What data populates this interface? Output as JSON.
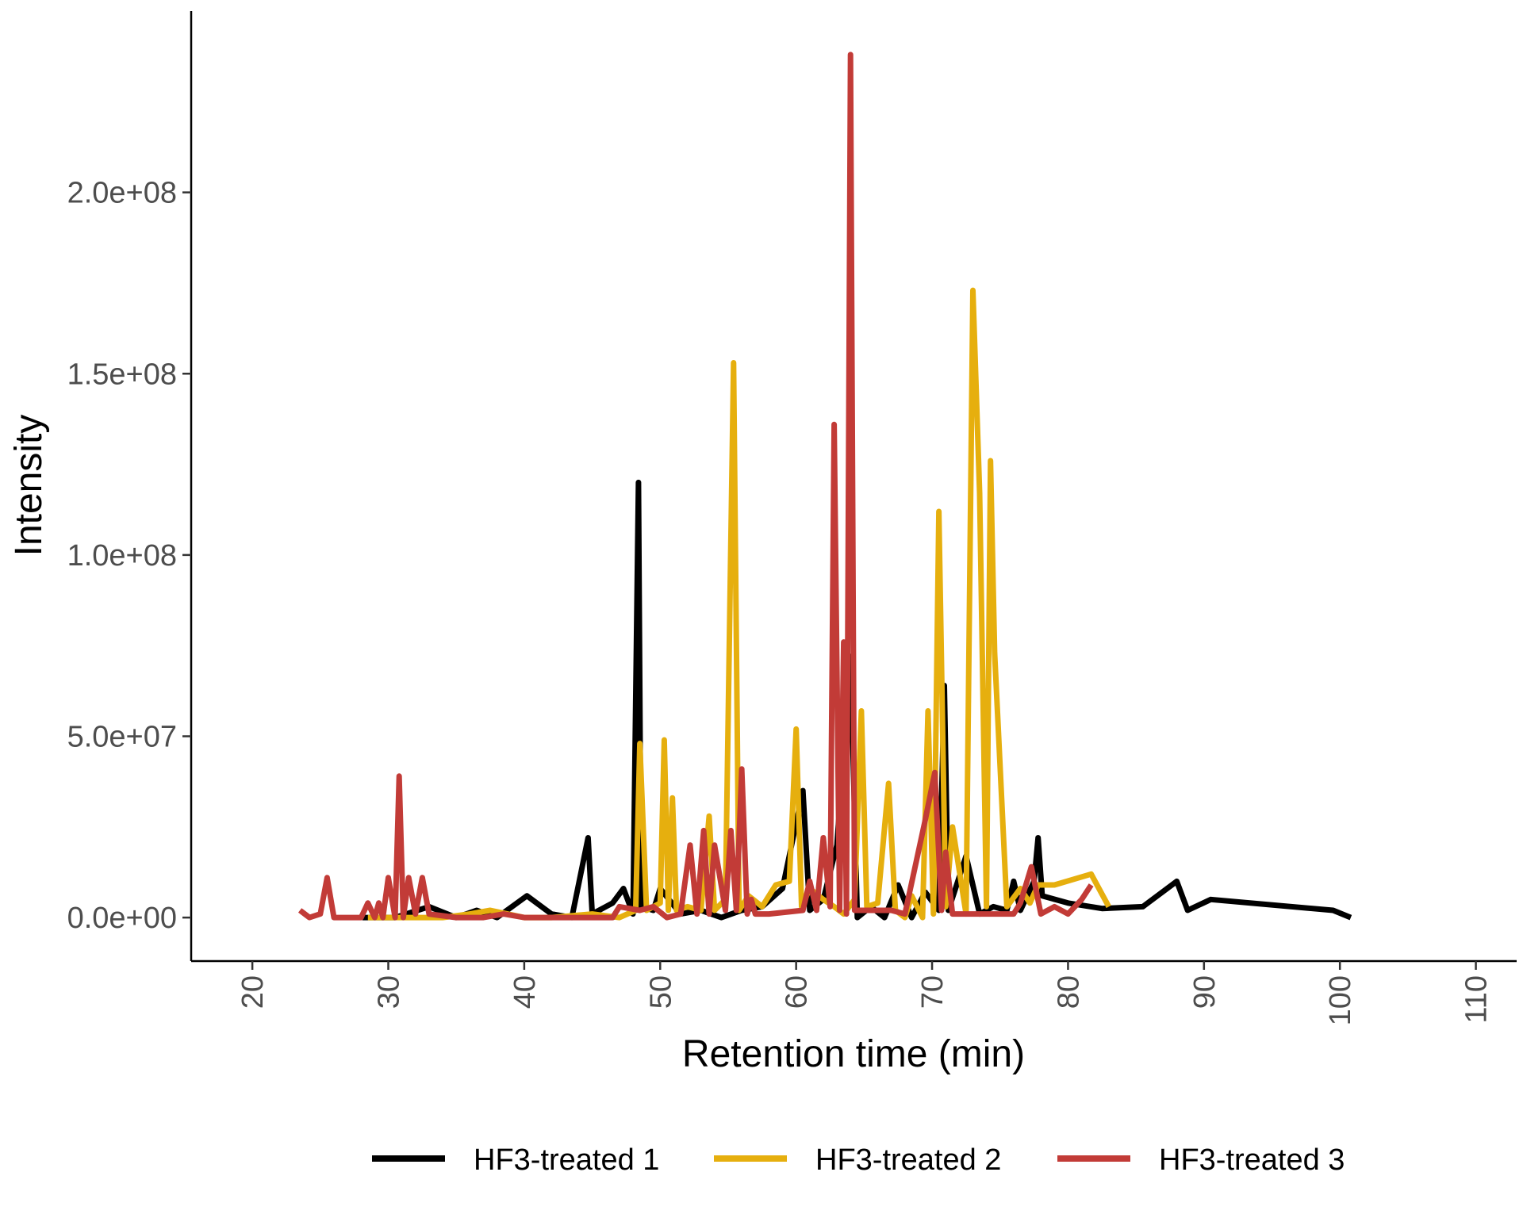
{
  "chart_data": {
    "type": "line",
    "title": "",
    "xlabel": "Retention time (min)",
    "ylabel": "Intensity",
    "xlim": [
      15.5,
      113
    ],
    "ylim": [
      -12000000,
      250000000
    ],
    "x_ticks": [
      20,
      30,
      40,
      50,
      60,
      70,
      80,
      90,
      100,
      110
    ],
    "x_tick_labels": [
      "20",
      "30",
      "40",
      "50",
      "60",
      "70",
      "80",
      "90",
      "100",
      "110"
    ],
    "y_ticks": [
      0,
      50000000,
      100000000,
      150000000,
      200000000
    ],
    "y_tick_labels": [
      "0.0e+00",
      "5.0e+07",
      "1.0e+08",
      "1.5e+08",
      "2.0e+08"
    ],
    "grid": false,
    "legend_position": "bottom",
    "series": [
      {
        "name": "HF3-treated 1",
        "color": "#000000",
        "x": [
          28.1,
          30.5,
          33.0,
          35.0,
          36.5,
          38.0,
          40.2,
          42.0,
          43.5,
          44.7,
          45.0,
          46.5,
          47.3,
          48.0,
          48.4,
          48.6,
          49.5,
          50.0,
          51.5,
          53.0,
          54.5,
          56.0,
          57.5,
          59.0,
          60.5,
          61.0,
          62.0,
          63.0,
          64.0,
          64.5,
          65.5,
          66.5,
          67.5,
          68.5,
          69.5,
          70.5,
          70.9,
          71.2,
          72.5,
          73.5,
          74.5,
          75.5,
          76.0,
          76.5,
          77.5,
          77.8,
          78.1,
          80.0,
          82.5,
          85.5,
          88.0,
          88.8,
          90.5,
          99.5,
          100.8
        ],
        "y": [
          0,
          0,
          3000000,
          0,
          2000000,
          0,
          6000000,
          1000000,
          0,
          22000000,
          1000000,
          4000000,
          8000000,
          1000000,
          120000000,
          3000000,
          2000000,
          8000000,
          1000000,
          2000000,
          0,
          2000000,
          3000000,
          8000000,
          35000000,
          2000000,
          5000000,
          20000000,
          72000000,
          0,
          3000000,
          0,
          9000000,
          0,
          7000000,
          2000000,
          64000000,
          2000000,
          17000000,
          1000000,
          3000000,
          2000000,
          10000000,
          2000000,
          10000000,
          22000000,
          6000000,
          4000000,
          2500000,
          3000000,
          10000000,
          2000000,
          5000000,
          2000000,
          0
        ]
      },
      {
        "name": "HF3-treated 2",
        "color": "#E6AF0E",
        "x": [
          28.5,
          30.0,
          32.0,
          34.0,
          36.0,
          37.5,
          40.0,
          42.0,
          45.0,
          47.0,
          48.2,
          48.5,
          49.0,
          50.0,
          50.3,
          50.6,
          50.9,
          51.2,
          52.0,
          53.0,
          53.6,
          54.0,
          54.8,
          55.4,
          55.8,
          56.5,
          57.5,
          58.5,
          59.5,
          60.0,
          60.4,
          61.0,
          62.0,
          62.8,
          63.5,
          64.3,
          64.8,
          65.2,
          66.0,
          66.8,
          67.3,
          68.0,
          68.5,
          69.3,
          69.7,
          70.1,
          70.5,
          71.0,
          71.5,
          72.5,
          73.0,
          73.5,
          74.0,
          74.3,
          74.6,
          75.5,
          76.5,
          77.2,
          77.8,
          79.0,
          81.7,
          83.0
        ],
        "y": [
          0,
          0,
          0,
          0,
          1000000,
          2000000,
          0,
          0,
          1000000,
          0,
          2000000,
          48000000,
          2000000,
          4000000,
          49000000,
          2000000,
          33000000,
          2000000,
          3000000,
          2000000,
          28000000,
          2000000,
          5000000,
          153000000,
          2000000,
          6000000,
          3000000,
          9000000,
          10000000,
          52000000,
          3000000,
          8000000,
          5000000,
          3000000,
          1000000,
          5000000,
          57000000,
          3000000,
          4000000,
          37000000,
          2000000,
          0,
          6000000,
          0,
          57000000,
          1000000,
          112000000,
          3000000,
          25000000,
          1000000,
          173000000,
          117000000,
          3000000,
          126000000,
          73000000,
          3000000,
          8000000,
          4000000,
          9000000,
          9000000,
          12000000,
          3000000
        ]
      },
      {
        "name": "HF3-treated 3",
        "color": "#C23B37",
        "x": [
          23.5,
          24.2,
          25.0,
          25.5,
          26.0,
          28.0,
          28.5,
          29.0,
          29.3,
          29.6,
          30.0,
          30.5,
          30.8,
          31.1,
          31.5,
          32.0,
          32.5,
          33.0,
          35.0,
          37.0,
          38.5,
          40.0,
          45.0,
          46.5,
          47.0,
          48.5,
          49.5,
          50.5,
          51.5,
          52.2,
          52.7,
          53.2,
          53.6,
          54.0,
          54.8,
          55.2,
          55.6,
          56.0,
          56.4,
          56.7,
          57.0,
          58.0,
          60.5,
          61.0,
          61.5,
          62.0,
          62.5,
          62.8,
          63.2,
          63.5,
          63.7,
          64.0,
          64.3,
          65.0,
          67.0,
          68.0,
          69.5,
          70.2,
          70.7,
          71.0,
          71.5,
          74.0,
          76.0,
          76.5,
          77.3,
          78.0,
          79.0,
          80.0,
          81.0,
          81.7
        ],
        "y": [
          2000000,
          0,
          1000000,
          11000000,
          0,
          0,
          4000000,
          0,
          4000000,
          0,
          11000000,
          0,
          39000000,
          0,
          11000000,
          1000000,
          11000000,
          1000000,
          0,
          0,
          1000000,
          0,
          0,
          0,
          3000000,
          2000000,
          3000000,
          0,
          1000000,
          20000000,
          1000000,
          24000000,
          1000000,
          20000000,
          2000000,
          24000000,
          2000000,
          41000000,
          1000000,
          5000000,
          1000000,
          1000000,
          2000000,
          10000000,
          2000000,
          22000000,
          3000000,
          136000000,
          2000000,
          76000000,
          1000000,
          238000000,
          2000000,
          2000000,
          2000000,
          1000000,
          27000000,
          40000000,
          2000000,
          18000000,
          1000000,
          1000000,
          1000000,
          4000000,
          14000000,
          1000000,
          3000000,
          1000000,
          5000000,
          9000000
        ]
      }
    ]
  }
}
